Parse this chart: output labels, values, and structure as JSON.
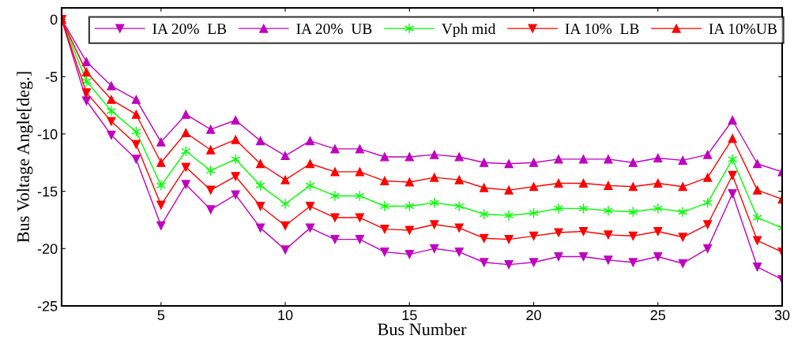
{
  "chart_data": {
    "type": "line",
    "xlabel": "Bus Number",
    "ylabel": "Bus Voltage Angle[deg.]",
    "x": [
      1,
      2,
      3,
      4,
      5,
      6,
      7,
      8,
      9,
      10,
      11,
      12,
      13,
      14,
      15,
      16,
      17,
      18,
      19,
      20,
      21,
      22,
      23,
      24,
      25,
      26,
      27,
      28,
      29,
      30
    ],
    "xlim": [
      1,
      30
    ],
    "xticks": [
      5,
      10,
      15,
      20,
      25,
      30
    ],
    "ylim": [
      -25,
      1
    ],
    "yticks": [
      -25,
      -20,
      -15,
      -10,
      -5,
      0
    ],
    "grid": false,
    "legend": "top",
    "line_style": "solid",
    "series": [
      {
        "name": "IA 20%  LB",
        "color": "#bf00bf",
        "marker": "triangle_down",
        "values": [
          0,
          -7.1,
          -10.1,
          -12.2,
          -18.0,
          -14.4,
          -16.6,
          -15.3,
          -18.2,
          -20.1,
          -18.2,
          -19.2,
          -19.2,
          -20.3,
          -20.5,
          -20.0,
          -20.3,
          -21.2,
          -21.4,
          -21.2,
          -20.7,
          -20.7,
          -21.0,
          -21.2,
          -20.7,
          -21.3,
          -20.0,
          -15.2,
          -21.6,
          -22.7
        ]
      },
      {
        "name": "IA 20%  UB",
        "color": "#bf00bf",
        "marker": "triangle",
        "values": [
          0,
          -3.7,
          -5.8,
          -7.0,
          -10.7,
          -8.3,
          -9.6,
          -8.8,
          -10.6,
          -11.9,
          -10.6,
          -11.3,
          -11.3,
          -12.0,
          -12.0,
          -11.8,
          -12.0,
          -12.5,
          -12.6,
          -12.5,
          -12.2,
          -12.2,
          -12.2,
          -12.5,
          -12.1,
          -12.3,
          -11.8,
          -8.8,
          -12.6,
          -13.3
        ]
      },
      {
        "name": "Vph mid",
        "color": "#00ff00",
        "marker": "cross",
        "values": [
          0,
          -5.4,
          -8.0,
          -9.8,
          -14.5,
          -11.5,
          -13.2,
          -12.2,
          -14.5,
          -16.1,
          -14.5,
          -15.4,
          -15.4,
          -16.3,
          -16.3,
          -16.0,
          -16.3,
          -17.0,
          -17.1,
          -16.9,
          -16.5,
          -16.5,
          -16.7,
          -16.8,
          -16.5,
          -16.8,
          -16.0,
          -12.2,
          -17.3,
          -18.2
        ]
      },
      {
        "name": "IA 10%  LB",
        "color": "#ff0000",
        "marker": "triangle_down",
        "values": [
          0,
          -6.4,
          -8.9,
          -10.9,
          -16.2,
          -12.9,
          -14.9,
          -13.7,
          -16.3,
          -18.0,
          -16.3,
          -17.3,
          -17.3,
          -18.3,
          -18.4,
          -17.9,
          -18.2,
          -19.1,
          -19.2,
          -18.9,
          -18.6,
          -18.5,
          -18.8,
          -18.9,
          -18.5,
          -19.0,
          -17.9,
          -13.6,
          -19.3,
          -20.3
        ]
      },
      {
        "name": "IA 10%UB",
        "color": "#ff0000",
        "marker": "triangle",
        "values": [
          0,
          -4.6,
          -7.0,
          -8.3,
          -12.5,
          -9.9,
          -11.4,
          -10.5,
          -12.6,
          -14.0,
          -12.6,
          -13.3,
          -13.3,
          -14.1,
          -14.2,
          -13.8,
          -14.0,
          -14.7,
          -14.9,
          -14.6,
          -14.3,
          -14.3,
          -14.5,
          -14.6,
          -14.3,
          -14.6,
          -13.8,
          -10.4,
          -14.9,
          -15.7
        ]
      }
    ]
  }
}
